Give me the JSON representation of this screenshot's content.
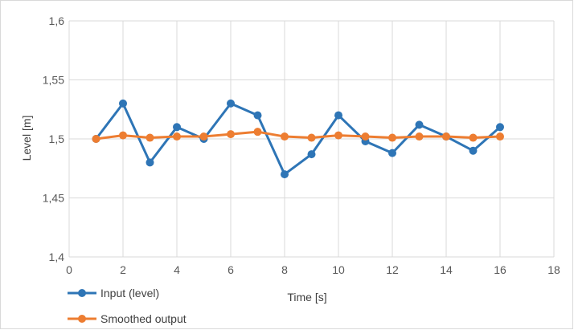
{
  "chart_data": {
    "type": "line",
    "xlabel": "Time [s]",
    "ylabel": "Level [m]",
    "xlim": [
      0,
      18
    ],
    "ylim": [
      1.4,
      1.6
    ],
    "x_ticks": [
      "0",
      "2",
      "4",
      "6",
      "8",
      "10",
      "12",
      "14",
      "16",
      "18"
    ],
    "y_ticks": [
      "1,4",
      "1,45",
      "1,5",
      "1,55",
      "1,6"
    ],
    "grid": true,
    "legend_position": "bottom-left",
    "x": [
      1,
      2,
      3,
      4,
      5,
      6,
      7,
      8,
      9,
      10,
      11,
      12,
      13,
      14,
      15,
      16
    ],
    "series": [
      {
        "name": "Input (level)",
        "color": "#2e75b6",
        "values": [
          1.5,
          1.53,
          1.48,
          1.51,
          1.5,
          1.53,
          1.52,
          1.47,
          1.487,
          1.52,
          1.498,
          1.488,
          1.512,
          1.502,
          1.49,
          1.51
        ]
      },
      {
        "name": "Smoothed output",
        "color": "#ed7d31",
        "values": [
          1.5,
          1.503,
          1.501,
          1.502,
          1.502,
          1.504,
          1.506,
          1.502,
          1.501,
          1.503,
          1.502,
          1.501,
          1.502,
          1.502,
          1.501,
          1.502
        ]
      }
    ]
  }
}
